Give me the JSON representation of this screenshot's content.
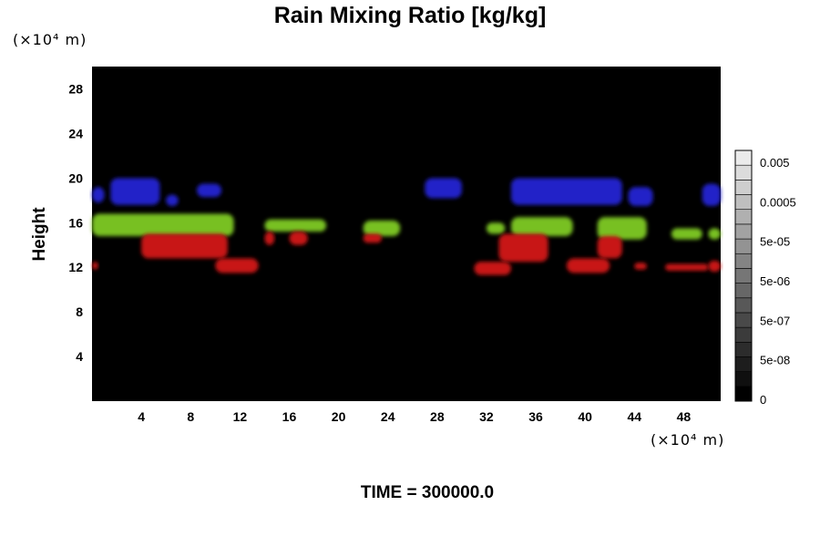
{
  "chart_data": {
    "type": "heatmap",
    "title": "Rain Mixing Ratio [kg/kg]",
    "ylabel": "Height",
    "xlabel": "",
    "x_unit": "(×10⁴ m)",
    "y_unit": "(×10⁴ m)",
    "x_ticks": [
      "4",
      "8",
      "12",
      "16",
      "20",
      "24",
      "28",
      "32",
      "36",
      "40",
      "44",
      "48"
    ],
    "y_ticks": [
      "4",
      "8",
      "12",
      "16",
      "20",
      "24",
      "28"
    ],
    "xlim": [
      0,
      51
    ],
    "ylim": [
      0,
      30
    ],
    "colorbar": {
      "labels": [
        "0",
        "5e-08",
        "5e-07",
        "5e-06",
        "5e-05",
        "0.0005",
        "0.005"
      ],
      "levels": 17
    },
    "background_color": "#000000",
    "layers": [
      {
        "color": "#2020c8",
        "blobs": [
          {
            "x": [
              0,
              1
            ],
            "y": [
              17.8,
              19.2
            ]
          },
          {
            "x": [
              1.5,
              5.5
            ],
            "y": [
              17.6,
              20.0
            ]
          },
          {
            "x": [
              6,
              7
            ],
            "y": [
              17.5,
              18.5
            ]
          },
          {
            "x": [
              8.5,
              10.5
            ],
            "y": [
              18.3,
              19.5
            ]
          },
          {
            "x": [
              27,
              30
            ],
            "y": [
              18.2,
              20.0
            ]
          },
          {
            "x": [
              34,
              43
            ],
            "y": [
              17.6,
              20.0
            ]
          },
          {
            "x": [
              43.5,
              45.5
            ],
            "y": [
              17.5,
              19.2
            ]
          },
          {
            "x": [
              49.5,
              51
            ],
            "y": [
              17.5,
              19.5
            ]
          }
        ]
      },
      {
        "color": "#78c020",
        "blobs": [
          {
            "x": [
              0,
              11.5
            ],
            "y": [
              14.8,
              16.8
            ]
          },
          {
            "x": [
              14,
              19
            ],
            "y": [
              15.2,
              16.3
            ]
          },
          {
            "x": [
              22,
              25
            ],
            "y": [
              14.8,
              16.2
            ]
          },
          {
            "x": [
              32,
              33.5
            ],
            "y": [
              15.0,
              16.0
            ]
          },
          {
            "x": [
              34,
              39
            ],
            "y": [
              14.8,
              16.5
            ]
          },
          {
            "x": [
              41,
              45
            ],
            "y": [
              14.5,
              16.5
            ]
          },
          {
            "x": [
              47,
              49.5
            ],
            "y": [
              14.5,
              15.5
            ]
          },
          {
            "x": [
              50,
              51
            ],
            "y": [
              14.5,
              15.5
            ]
          }
        ]
      },
      {
        "color": "#c81414",
        "blobs": [
          {
            "x": [
              0,
              0.5
            ],
            "y": [
              11.8,
              12.5
            ]
          },
          {
            "x": [
              4,
              11
            ],
            "y": [
              12.8,
              15.0
            ]
          },
          {
            "x": [
              10,
              13.5
            ],
            "y": [
              11.5,
              12.8
            ]
          },
          {
            "x": [
              14,
              14.8
            ],
            "y": [
              14.0,
              15.2
            ]
          },
          {
            "x": [
              16,
              17.5
            ],
            "y": [
              14.0,
              15.2
            ]
          },
          {
            "x": [
              22,
              23.5
            ],
            "y": [
              14.2,
              15.0
            ]
          },
          {
            "x": [
              31,
              34
            ],
            "y": [
              11.3,
              12.5
            ]
          },
          {
            "x": [
              33,
              37
            ],
            "y": [
              12.5,
              15.0
            ]
          },
          {
            "x": [
              38.5,
              42
            ],
            "y": [
              11.5,
              12.8
            ]
          },
          {
            "x": [
              41,
              43
            ],
            "y": [
              12.8,
              14.8
            ]
          },
          {
            "x": [
              44,
              45
            ],
            "y": [
              11.8,
              12.4
            ]
          },
          {
            "x": [
              46.5,
              50
            ],
            "y": [
              11.7,
              12.3
            ]
          },
          {
            "x": [
              50,
              51
            ],
            "y": [
              11.6,
              12.6
            ]
          }
        ]
      }
    ]
  },
  "footer": {
    "time_label": "TIME = 300000.0"
  }
}
